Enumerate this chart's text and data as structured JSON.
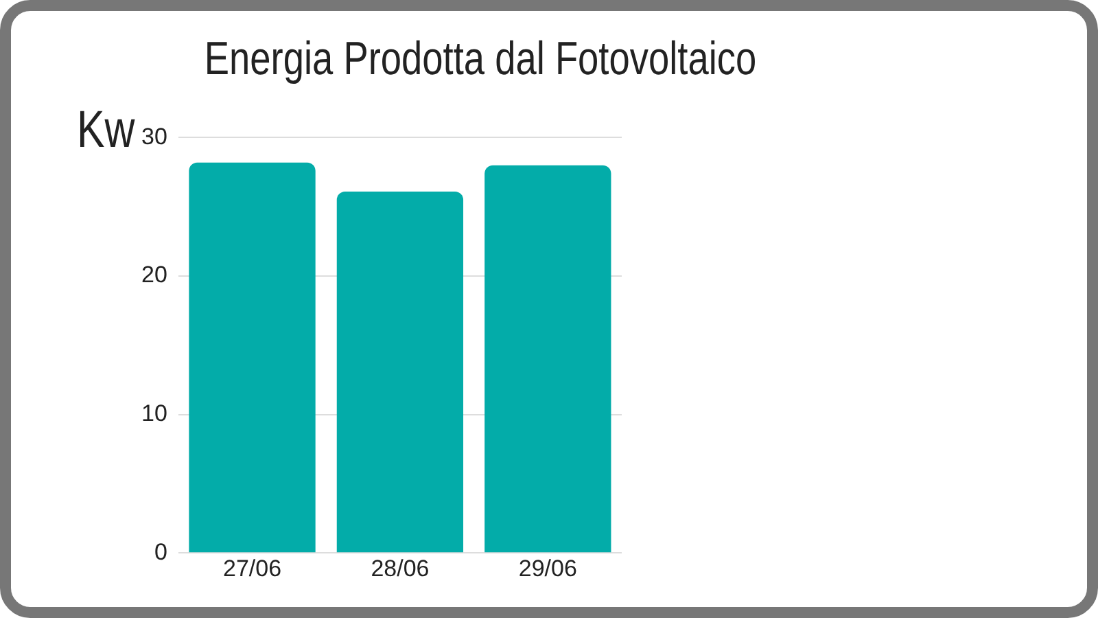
{
  "chart_data": {
    "type": "bar",
    "title": "Energia Prodotta dal Fotovoltaico",
    "ylabel": "Kw",
    "categories": [
      "27/06",
      "28/06",
      "29/06"
    ],
    "values": [
      28.2,
      26.1,
      28.0
    ],
    "color": "#03aca9",
    "ylim": [
      0,
      30
    ],
    "yticks": [
      0,
      10,
      20,
      30
    ],
    "grid": "y"
  }
}
